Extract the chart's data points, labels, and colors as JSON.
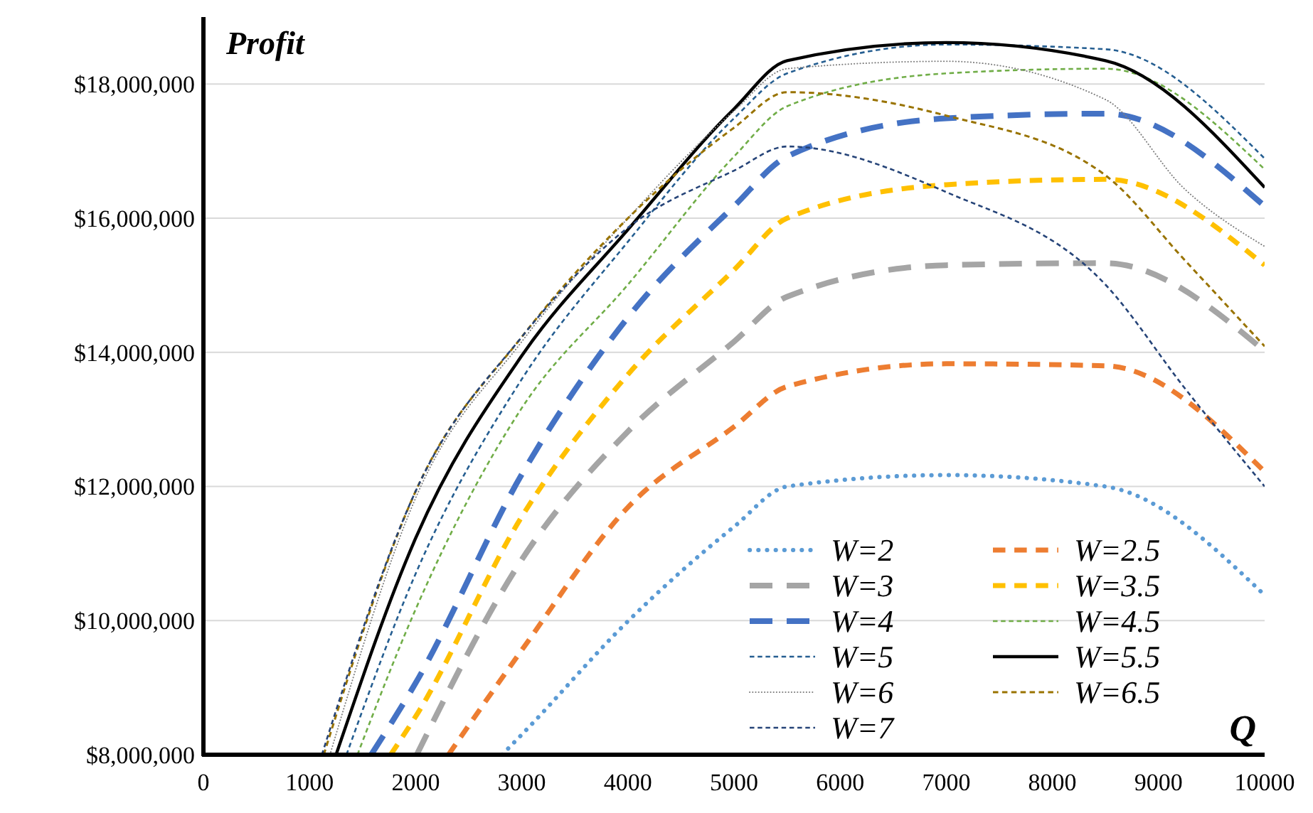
{
  "chart_data": {
    "type": "line",
    "title": "Profit",
    "xlabel": "Q",
    "xlim": [
      0,
      10000
    ],
    "xticks": [
      0,
      1000,
      2000,
      3000,
      4000,
      5000,
      6000,
      7000,
      8000,
      9000,
      10000
    ],
    "ylim": [
      8000000,
      19000000
    ],
    "yticks": [
      {
        "value": 8000000,
        "label": "$8,000,000"
      },
      {
        "value": 10000000,
        "label": "$10,000,000"
      },
      {
        "value": 12000000,
        "label": "$12,000,000"
      },
      {
        "value": 14000000,
        "label": "$14,000,000"
      },
      {
        "value": 16000000,
        "label": "$16,000,000"
      },
      {
        "value": 18000000,
        "label": "$18,000,000"
      }
    ],
    "grid": "y",
    "legend": "bottom right",
    "marker": "none",
    "series": [
      {
        "name": "W=2",
        "color": "#5b9bd5",
        "line_style": "dotted",
        "x": [
          2814,
          3000,
          4000,
          5000,
          5500,
          7000,
          8500,
          10000
        ],
        "values": [
          8000000,
          8300000,
          9990000,
          11400000,
          12000000,
          12170000,
          12000000,
          10380000
        ]
      },
      {
        "name": "W=2.5",
        "color": "#ed7d31",
        "line_style": "dashed",
        "x": [
          2309,
          3000,
          4000,
          5000,
          5500,
          7000,
          8500,
          10000
        ],
        "values": [
          8000000,
          9560000,
          11690000,
          12890000,
          13490000,
          13830000,
          13800000,
          12220000
        ]
      },
      {
        "name": "W=3",
        "color": "#a5a5a5",
        "line_style": "dashed",
        "x": [
          2010,
          3000,
          4000,
          5000,
          5500,
          7000,
          8500,
          10000
        ],
        "values": [
          8000000,
          10910000,
          12820000,
          14160000,
          14830000,
          15300000,
          15330000,
          14020000
        ]
      },
      {
        "name": "W=3.5",
        "color": "#ffc000",
        "line_style": "dashed",
        "x": [
          1764,
          2000,
          3000,
          4000,
          5000,
          5500,
          7000,
          8500,
          10000
        ],
        "values": [
          8000000,
          8570000,
          11550000,
          13670000,
          15230000,
          16000000,
          16500000,
          16580000,
          15300000
        ]
      },
      {
        "name": "W=4",
        "color": "#4472c4",
        "line_style": "dashed",
        "x": [
          1581,
          2000,
          3000,
          4000,
          5000,
          5500,
          7000,
          8500,
          10000
        ],
        "values": [
          8000000,
          9070000,
          12180000,
          14520000,
          16180000,
          16920000,
          17490000,
          17560000,
          16180000
        ]
      },
      {
        "name": "W=4.5",
        "color": "#70ad47",
        "line_style": "dashed",
        "x": [
          1451,
          2000,
          3000,
          4000,
          5000,
          5500,
          7000,
          8500,
          10000
        ],
        "values": [
          8000000,
          10170000,
          13170000,
          15010000,
          16920000,
          17670000,
          18160000,
          18230000,
          16730000
        ]
      },
      {
        "name": "W=5",
        "color": "#255e91",
        "line_style": "dashed",
        "x": [
          1348,
          2000,
          3000,
          4000,
          5000,
          5500,
          7000,
          8500,
          10000
        ],
        "values": [
          8000000,
          10700000,
          13600000,
          15650000,
          17490000,
          18160000,
          18590000,
          18520000,
          16890000
        ]
      },
      {
        "name": "W=5.5",
        "color": "#000000",
        "line_style": "solid",
        "x": [
          1250,
          2000,
          3000,
          4000,
          5000,
          5500,
          7000,
          8500,
          10000
        ],
        "values": [
          8000000,
          11230000,
          13950000,
          15830000,
          17630000,
          18350000,
          18620000,
          18350000,
          16460000
        ]
      },
      {
        "name": "W=6",
        "color": "#7f7f7f",
        "line_style": "dotted",
        "x": [
          1192,
          2000,
          3000,
          4000,
          5000,
          5500,
          7000,
          8500,
          9250,
          10000
        ],
        "values": [
          8000000,
          11830000,
          14160000,
          16000000,
          17600000,
          18230000,
          18340000,
          17770000,
          16430000,
          15580000
        ]
      },
      {
        "name": "W=6.5",
        "color": "#997300",
        "line_style": "dashed",
        "x": [
          1134,
          2000,
          3000,
          4000,
          5000,
          5500,
          7000,
          8500,
          9250,
          10000
        ],
        "values": [
          8000000,
          11930000,
          14230000,
          16000000,
          17350000,
          17880000,
          17530000,
          16640000,
          15370000,
          14090000
        ]
      },
      {
        "name": "W=7",
        "color": "#264478",
        "line_style": "dashed",
        "x": [
          1116,
          2000,
          3000,
          4000,
          5000,
          5500,
          7000,
          8500,
          9250,
          10000
        ],
        "values": [
          8000000,
          11930000,
          14230000,
          15860000,
          16710000,
          17070000,
          16390000,
          15010000,
          13460000,
          12000000
        ]
      }
    ]
  }
}
